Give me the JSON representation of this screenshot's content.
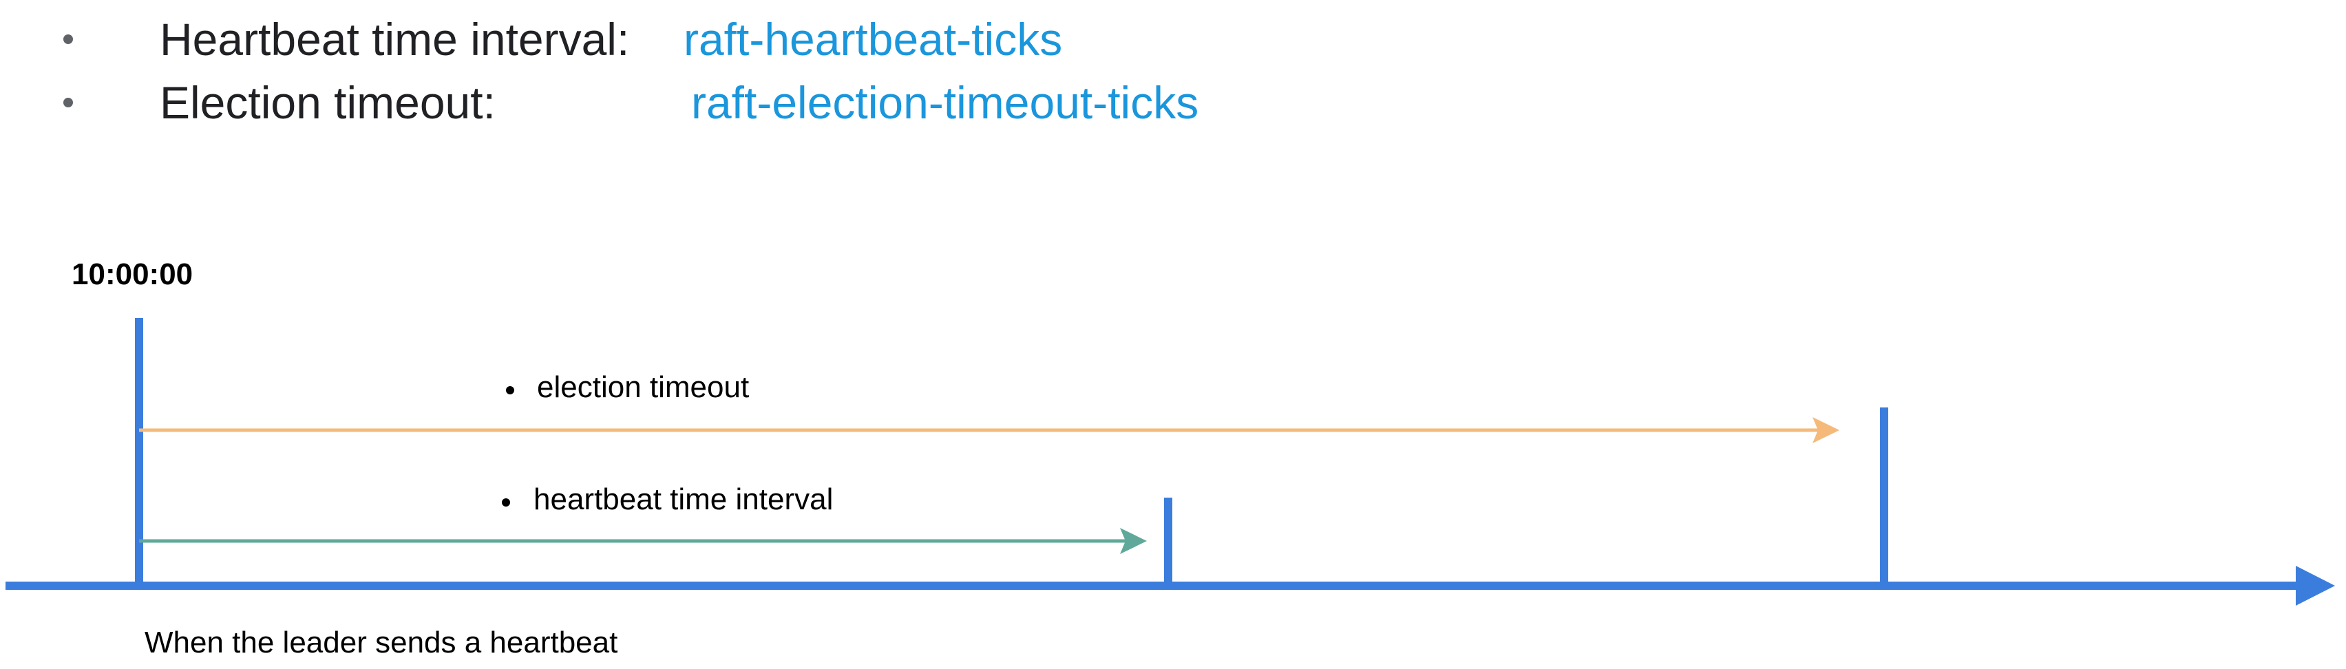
{
  "bullets": [
    {
      "label": "Heartbeat time interval:",
      "param": "raft-heartbeat-ticks"
    },
    {
      "label": "Election timeout:",
      "param": "raft-election-timeout-ticks"
    }
  ],
  "diagram": {
    "start_time": "10:00:00",
    "election_label": "election timeout",
    "heartbeat_label": "heartbeat time interval",
    "caption": "When the leader sends a heartbeat"
  },
  "colors": {
    "axis": "#3b7ddd",
    "election_arrow": "#f5b97a",
    "heartbeat_arrow": "#5fa89a",
    "param_text": "#1a96dc",
    "text": "#202124"
  }
}
